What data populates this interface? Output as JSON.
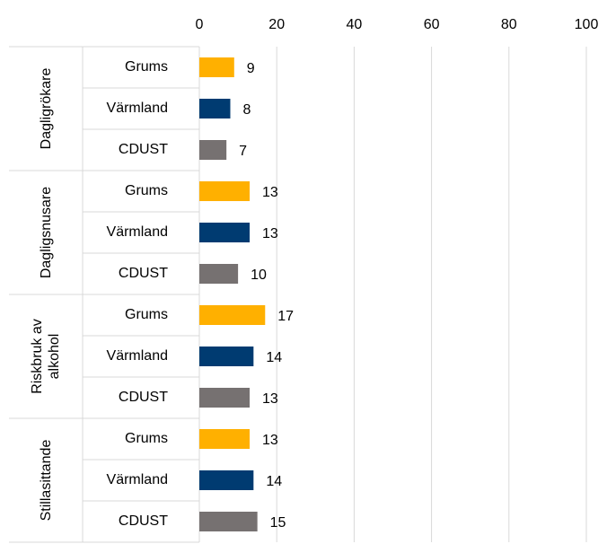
{
  "chart_data": {
    "type": "bar",
    "orientation": "horizontal",
    "categories": [
      "Dagligrökare",
      "Dagligsnusare",
      "Riskbruk av alkohol",
      "Stillasittande"
    ],
    "series": [
      {
        "name": "Grums",
        "color": "#ffb000",
        "values": [
          9,
          13,
          17,
          13
        ]
      },
      {
        "name": "Värmland",
        "color": "#003b71",
        "values": [
          8,
          13,
          14,
          14
        ]
      },
      {
        "name": "CDUST",
        "color": "#767171",
        "values": [
          7,
          10,
          13,
          15
        ]
      }
    ],
    "xlim": [
      0,
      100
    ],
    "xticks": [
      0,
      20,
      40,
      60,
      80,
      100
    ],
    "grid": true
  }
}
